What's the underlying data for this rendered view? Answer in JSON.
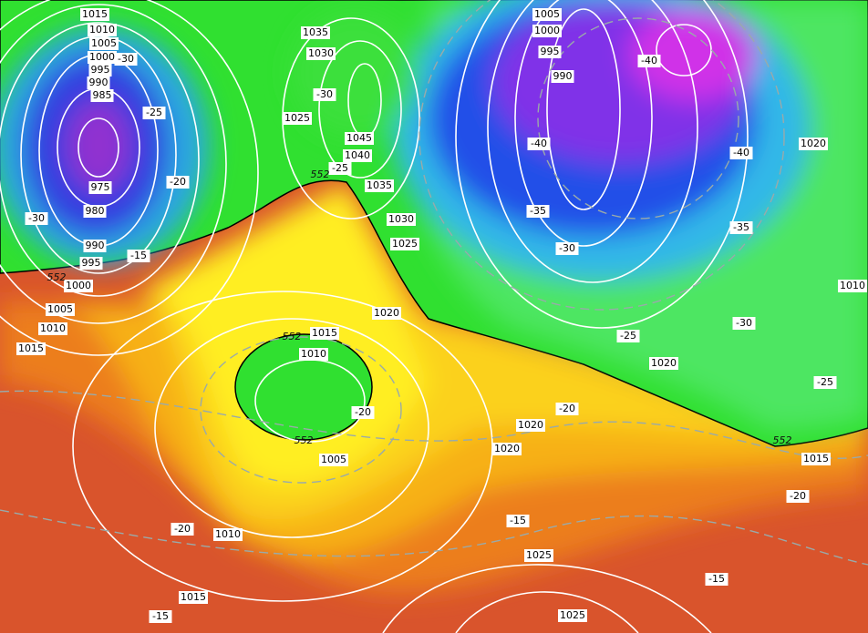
{
  "isobar_labels": [
    "1015",
    "1010",
    "1005",
    "1000",
    "995",
    "990",
    "985",
    "975",
    "980",
    "990",
    "995",
    "1000",
    "1005",
    "1010",
    "1015",
    "1035",
    "1030",
    "1025",
    "1045",
    "1040",
    "1035",
    "1030",
    "1025",
    "1020",
    "1015",
    "1010",
    "1005",
    "1010",
    "1015",
    "1005",
    "1000",
    "995",
    "990",
    "1020",
    "1010",
    "1020",
    "1020",
    "1020",
    "1015",
    "1025",
    "1025"
  ],
  "temperature_labels": [
    "-30",
    "-25",
    "-20",
    "-30",
    "-15",
    "-30",
    "-25",
    "-20",
    "-40",
    "-40",
    "-35",
    "-30",
    "-40",
    "-35",
    "-30",
    "-25",
    "-25",
    "-20",
    "-20",
    "-15",
    "-20",
    "-15",
    "-15"
  ],
  "thickness_labels": [
    "552",
    "552",
    "552",
    "552",
    "552"
  ]
}
